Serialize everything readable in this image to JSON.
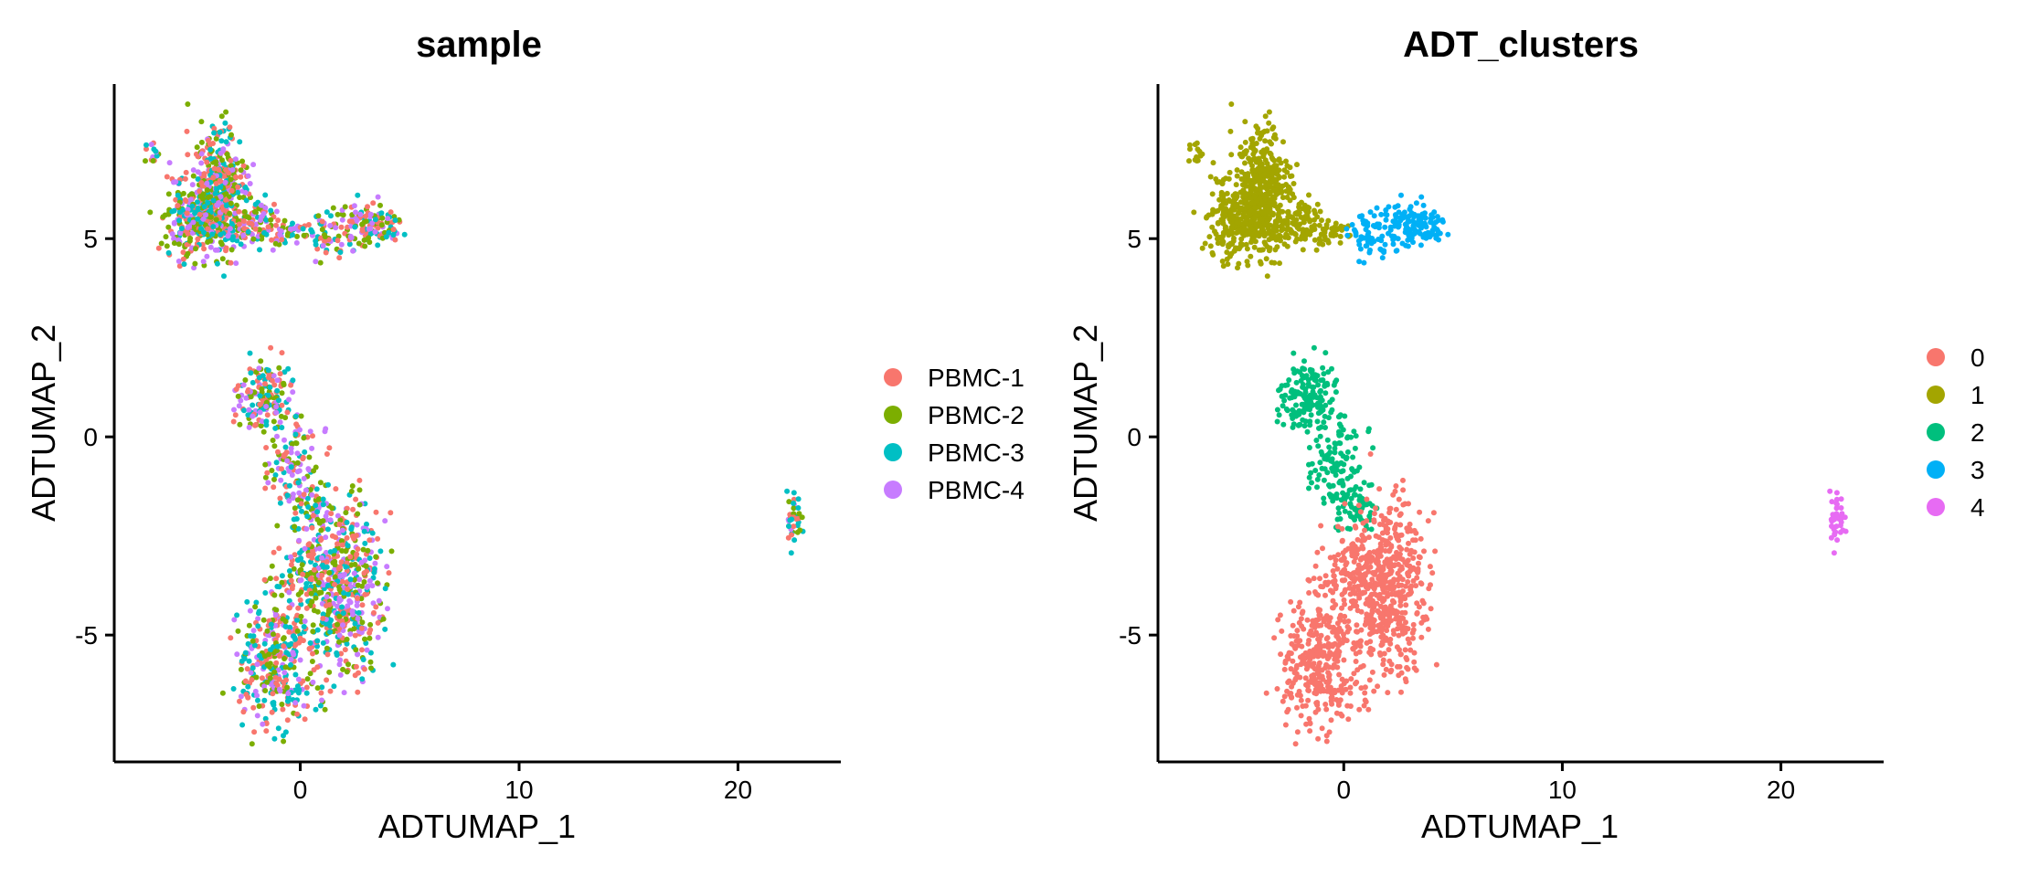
{
  "chart_data": [
    {
      "type": "scatter",
      "title": "sample",
      "xlabel": "ADTUMAP_1",
      "ylabel": "ADTUMAP_2",
      "xlim": [
        -8.5,
        24.7
      ],
      "ylim": [
        -8.2,
        8.9
      ],
      "x_ticks": [
        0,
        10,
        20
      ],
      "x_tick_labels": [
        "0",
        "10",
        "20"
      ],
      "y_ticks": [
        -5,
        0,
        5
      ],
      "y_tick_labels": [
        "-5",
        "0",
        "5"
      ],
      "grid": false,
      "legend_position": "right",
      "color_by": "sample",
      "mixed": true,
      "series": [
        {
          "name": "PBMC-1",
          "color": "#F8766D"
        },
        {
          "name": "PBMC-2",
          "color": "#7CAE00"
        },
        {
          "name": "PBMC-3",
          "color": "#00BFC4"
        },
        {
          "name": "PBMC-4",
          "color": "#C77CFF"
        }
      ]
    },
    {
      "type": "scatter",
      "title": "ADT_clusters",
      "xlabel": "ADTUMAP_1",
      "ylabel": "ADTUMAP_2",
      "xlim": [
        -8.5,
        24.7
      ],
      "ylim": [
        -8.2,
        8.9
      ],
      "x_ticks": [
        0,
        10,
        20
      ],
      "x_tick_labels": [
        "0",
        "10",
        "20"
      ],
      "y_ticks": [
        -5,
        0,
        5
      ],
      "y_tick_labels": [
        "-5",
        "0",
        "5"
      ],
      "grid": false,
      "legend_position": "right",
      "color_by": "cluster",
      "mixed": false,
      "series": [
        {
          "name": "0",
          "color": "#F8766D"
        },
        {
          "name": "1",
          "color": "#A3A500"
        },
        {
          "name": "2",
          "color": "#00BF7D"
        },
        {
          "name": "3",
          "color": "#00B0F6"
        },
        {
          "name": "4",
          "color": "#E76BF3"
        }
      ]
    }
  ],
  "clusters": [
    {
      "id": "1",
      "regions": [
        {
          "x": [
            -4.8,
            -2.6
          ],
          "y": [
            4.7,
            7.7
          ],
          "n": 420
        },
        {
          "x": [
            -6.2,
            -3.4
          ],
          "y": [
            4.6,
            6.5
          ],
          "n": 260
        },
        {
          "x": [
            -2.8,
            -1.0
          ],
          "y": [
            4.8,
            6.0
          ],
          "n": 90
        },
        {
          "x": [
            -1.5,
            0.2
          ],
          "y": [
            4.9,
            5.5
          ],
          "n": 35
        },
        {
          "x": [
            -7.0,
            -6.4
          ],
          "y": [
            6.9,
            7.4
          ],
          "n": 14
        }
      ]
    },
    {
      "id": "3",
      "regions": [
        {
          "x": [
            0.2,
            2.0
          ],
          "y": [
            4.5,
            5.7
          ],
          "n": 55
        },
        {
          "x": [
            1.8,
            4.5
          ],
          "y": [
            4.8,
            5.9
          ],
          "n": 130
        }
      ]
    },
    {
      "id": "2",
      "regions": [
        {
          "x": [
            -2.8,
            -0.4
          ],
          "y": [
            0.2,
            1.9
          ],
          "n": 170
        },
        {
          "x": [
            -1.6,
            1.0
          ],
          "y": [
            -1.6,
            0.3
          ],
          "n": 110
        },
        {
          "x": [
            -0.8,
            1.6
          ],
          "y": [
            -2.4,
            -1.2
          ],
          "n": 60
        }
      ]
    },
    {
      "id": "0",
      "regions": [
        {
          "x": [
            0.4,
            3.6
          ],
          "y": [
            -5.9,
            -1.6
          ],
          "n": 520
        },
        {
          "x": [
            -2.8,
            0.6
          ],
          "y": [
            -7.2,
            -4.2
          ],
          "n": 330
        },
        {
          "x": [
            -1.2,
            1.4
          ],
          "y": [
            -4.6,
            -2.4
          ],
          "n": 100
        }
      ]
    },
    {
      "id": "4",
      "regions": [
        {
          "x": [
            22.2,
            22.9
          ],
          "y": [
            -2.7,
            -1.5
          ],
          "n": 40
        }
      ]
    }
  ]
}
